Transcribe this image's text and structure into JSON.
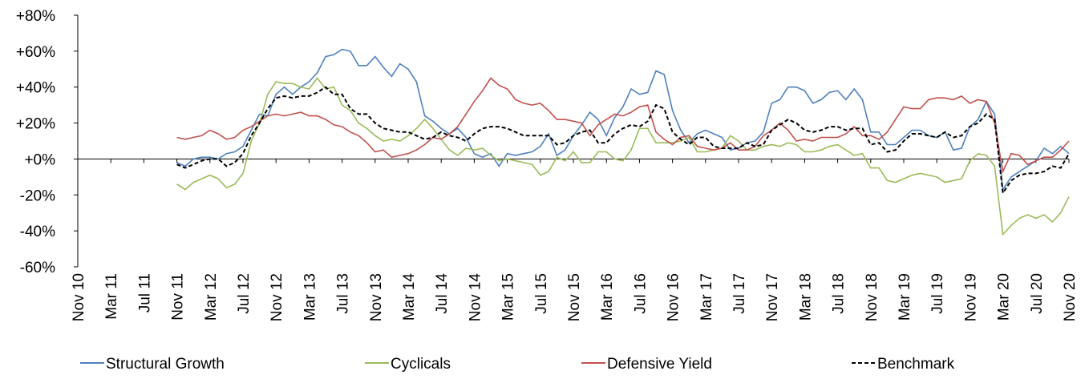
{
  "chart_data": {
    "type": "line",
    "categories": [
      "Nov 10",
      null,
      null,
      null,
      "Mar 11",
      null,
      null,
      null,
      "Jul 11",
      null,
      null,
      null,
      "Nov 11",
      null,
      null,
      null,
      "Mar 12",
      null,
      null,
      null,
      "Jul 12",
      null,
      null,
      null,
      "Nov 12",
      null,
      null,
      null,
      "Mar 13",
      null,
      null,
      null,
      "Jul 13",
      null,
      null,
      null,
      "Nov 13",
      null,
      null,
      null,
      "Mar 14",
      null,
      null,
      null,
      "Jul 14",
      null,
      null,
      null,
      "Nov 14",
      null,
      null,
      null,
      "Mar 15",
      null,
      null,
      null,
      "Jul 15",
      null,
      null,
      null,
      "Nov 15",
      null,
      null,
      null,
      "Mar 16",
      null,
      null,
      null,
      "Jul 16",
      null,
      null,
      null,
      "Nov 16",
      null,
      null,
      null,
      "Mar 17",
      null,
      null,
      null,
      "Jul 17",
      null,
      null,
      null,
      "Nov 17",
      null,
      null,
      null,
      "Mar 18",
      null,
      null,
      null,
      "Jul 18",
      null,
      null,
      null,
      "Nov 18",
      null,
      null,
      null,
      "Mar 19",
      null,
      null,
      null,
      "Jul 19",
      null,
      null,
      null,
      "Nov 19",
      null,
      null,
      null,
      "Mar 20",
      null,
      null,
      null,
      "Jul 20",
      null,
      null,
      null,
      "Nov 20"
    ],
    "series": [
      {
        "name": "Structural Growth",
        "color": "#4f81bd",
        "dashed": false,
        "values": [
          null,
          null,
          null,
          null,
          null,
          null,
          null,
          null,
          null,
          null,
          null,
          null,
          -2,
          -4,
          0,
          1,
          1,
          0,
          3,
          4,
          7,
          16,
          25,
          24,
          36,
          40,
          36,
          40,
          43,
          48,
          57,
          58,
          61,
          60,
          52,
          52,
          57,
          51,
          46,
          53,
          50,
          43,
          24,
          21,
          17,
          14,
          17,
          12,
          3,
          1,
          3,
          -4,
          3,
          2,
          3,
          4,
          7,
          14,
          2,
          5,
          13,
          19,
          26,
          22,
          13,
          23,
          29,
          39,
          36,
          37,
          49,
          47,
          27,
          16,
          9,
          14,
          16,
          14,
          12,
          5,
          6,
          9,
          10,
          15,
          31,
          33,
          40,
          40,
          38,
          31,
          33,
          37,
          38,
          33,
          39,
          33,
          15,
          15,
          8,
          8,
          12,
          16,
          16,
          13,
          12,
          15,
          5,
          6,
          18,
          22,
          32,
          25,
          -17,
          -10,
          -7,
          -4,
          -1,
          6,
          3,
          7,
          3
        ]
      },
      {
        "name": "Cyclicals",
        "color": "#9bbb59",
        "dashed": false,
        "values": [
          null,
          null,
          null,
          null,
          null,
          null,
          null,
          null,
          null,
          null,
          null,
          null,
          -14,
          -17,
          -13,
          -11,
          -9,
          -11,
          -16,
          -14,
          -8,
          10,
          20,
          36,
          43,
          42,
          42,
          40,
          39,
          45,
          39,
          40,
          30,
          27,
          20,
          17,
          13,
          10,
          11,
          10,
          13,
          17,
          22,
          17,
          11,
          5,
          2,
          6,
          5,
          6,
          2,
          -1,
          0,
          -1,
          -2,
          -3,
          -9,
          -7,
          1,
          -1,
          4,
          -2,
          -2,
          4,
          4,
          0,
          -1,
          5,
          17,
          17,
          9,
          9,
          9,
          10,
          12,
          4,
          4,
          5,
          6,
          13,
          10,
          5,
          5,
          7,
          8,
          7,
          9,
          8,
          4,
          4,
          5,
          7,
          8,
          5,
          2,
          3,
          -5,
          -5,
          -12,
          -13,
          -11,
          -9,
          -8,
          -9,
          -10,
          -13,
          -12,
          -11,
          -1,
          3,
          2,
          -4,
          -42,
          -37,
          -33,
          -31,
          -33,
          -31,
          -35,
          -30,
          -21
        ]
      },
      {
        "name": "Defensive Yield",
        "color": "#c0504d",
        "dashed": false,
        "values": [
          null,
          null,
          null,
          null,
          null,
          null,
          null,
          null,
          null,
          null,
          null,
          null,
          12,
          11,
          12,
          13,
          16,
          14,
          11,
          12,
          16,
          18,
          21,
          24,
          25,
          24,
          25,
          26,
          24,
          24,
          22,
          19,
          18,
          15,
          13,
          9,
          4,
          5,
          1,
          2,
          3,
          5,
          8,
          12,
          11,
          14,
          18,
          25,
          32,
          38,
          45,
          41,
          39,
          33,
          31,
          30,
          31,
          27,
          22,
          22,
          21,
          20,
          13,
          19,
          22,
          25,
          24,
          26,
          29,
          30,
          15,
          11,
          8,
          12,
          13,
          7,
          6,
          5,
          6,
          9,
          5,
          5,
          7,
          13,
          16,
          20,
          16,
          10,
          11,
          10,
          12,
          12,
          12,
          14,
          18,
          13,
          13,
          11,
          15,
          22,
          29,
          28,
          28,
          33,
          34,
          34,
          33,
          35,
          31,
          33,
          32,
          20,
          -7,
          3,
          2,
          -3,
          -1,
          1,
          1,
          5,
          10
        ]
      },
      {
        "name": "Benchmark",
        "color": "#000000",
        "dashed": true,
        "values": [
          null,
          null,
          null,
          null,
          null,
          null,
          null,
          null,
          null,
          null,
          null,
          null,
          -3,
          -5,
          -3,
          -1,
          0,
          0,
          -4,
          -2,
          3,
          13,
          20,
          28,
          34,
          35,
          34,
          35,
          35,
          37,
          40,
          36,
          36,
          28,
          25,
          25,
          20,
          17,
          16,
          15,
          15,
          13,
          11,
          12,
          15,
          13,
          12,
          10,
          14,
          17,
          18,
          18,
          17,
          15,
          13,
          13,
          13,
          13,
          8,
          9,
          13,
          15,
          16,
          9,
          9,
          14,
          17,
          19,
          18,
          21,
          30,
          28,
          15,
          11,
          8,
          12,
          12,
          7,
          6,
          6,
          6,
          9,
          7,
          8,
          16,
          19,
          22,
          20,
          16,
          15,
          16,
          18,
          18,
          16,
          17,
          17,
          8,
          9,
          4,
          5,
          10,
          14,
          14,
          13,
          12,
          15,
          12,
          13,
          18,
          20,
          25,
          22,
          -19,
          -12,
          -9,
          -8,
          -8,
          -7,
          -4,
          -5,
          3
        ]
      }
    ],
    "ylim": [
      -60,
      80
    ],
    "yticks": [
      {
        "value": -60,
        "label": "-60%"
      },
      {
        "value": -40,
        "label": "-40%"
      },
      {
        "value": -20,
        "label": "-20%"
      },
      {
        "value": 0,
        "label": "+0%"
      },
      {
        "value": 20,
        "label": "+20%"
      },
      {
        "value": 40,
        "label": "+40%"
      },
      {
        "value": 60,
        "label": "+60%"
      },
      {
        "value": 80,
        "label": "+80%"
      }
    ],
    "grid": false,
    "legend": "bottom"
  }
}
